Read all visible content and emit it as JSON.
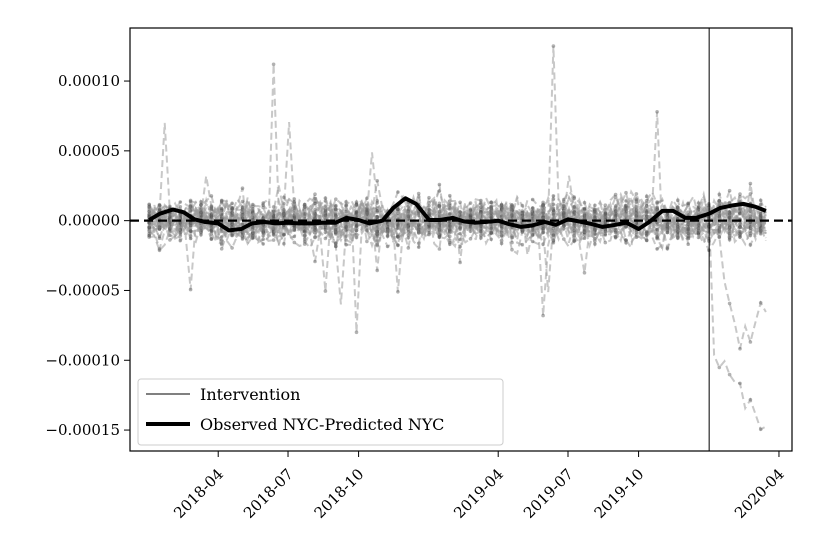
{
  "chart_data": {
    "type": "line",
    "xlabel": "",
    "ylabel": "",
    "xlim": [
      "2017-12-07",
      "2020-04-18"
    ],
    "ylim": [
      -0.000165,
      0.000138
    ],
    "x_ticks": [
      "2018-04",
      "2018-07",
      "2018-10",
      "2019-04",
      "2019-07",
      "2019-10",
      "2020-04"
    ],
    "y_ticks": [
      {
        "value": 0.0001,
        "label": "0.00010"
      },
      {
        "value": 5e-05,
        "label": "0.00005"
      },
      {
        "value": 0.0,
        "label": "0.00000"
      },
      {
        "value": -5e-05,
        "label": "−0.00005"
      },
      {
        "value": -0.0001,
        "label": "−0.00010"
      },
      {
        "value": -0.00015,
        "label": "−0.00015"
      }
    ],
    "reference_line": {
      "y": 0,
      "style": "dashed"
    },
    "intervention": {
      "date": "2020-01-01",
      "label": "Intervention"
    },
    "legend": {
      "position": "lower-left",
      "entries": [
        "Intervention",
        "Observed NYC-Predicted NYC"
      ]
    },
    "observed_series": {
      "name": "Observed NYC-Predicted NYC",
      "x": [
        "2018-01-01",
        "2018-01-15",
        "2018-02-01",
        "2018-02-15",
        "2018-03-01",
        "2018-03-15",
        "2018-04-01",
        "2018-04-15",
        "2018-05-01",
        "2018-05-15",
        "2018-06-01",
        "2018-06-15",
        "2018-07-01",
        "2018-07-15",
        "2018-08-01",
        "2018-08-15",
        "2018-09-01",
        "2018-09-15",
        "2018-10-01",
        "2018-10-15",
        "2018-11-01",
        "2018-11-15",
        "2018-12-01",
        "2018-12-15",
        "2019-01-01",
        "2019-01-15",
        "2019-02-01",
        "2019-02-15",
        "2019-03-01",
        "2019-03-15",
        "2019-04-01",
        "2019-04-15",
        "2019-05-01",
        "2019-05-15",
        "2019-06-01",
        "2019-06-15",
        "2019-07-01",
        "2019-07-15",
        "2019-08-01",
        "2019-08-15",
        "2019-09-01",
        "2019-09-15",
        "2019-10-01",
        "2019-10-15",
        "2019-11-01",
        "2019-11-15",
        "2019-12-01",
        "2019-12-15",
        "2020-01-01",
        "2020-01-15",
        "2020-02-01",
        "2020-02-15",
        "2020-03-01",
        "2020-03-15"
      ],
      "y": [
        5e-07,
        5e-06,
        8e-06,
        6e-06,
        1e-06,
        -1e-06,
        -2e-06,
        -7e-06,
        -6e-06,
        -2e-06,
        -1e-06,
        -2e-06,
        -1.5e-06,
        -2e-06,
        -2e-06,
        -1.5e-06,
        -1.5e-06,
        2e-06,
        5e-07,
        -2e-06,
        0.0,
        9e-06,
        1.6e-05,
        1.2e-05,
        5e-07,
        5e-07,
        2e-06,
        -5e-07,
        -1.5e-06,
        -1e-06,
        0.0,
        -2.5e-06,
        -4.5e-06,
        -3.5e-06,
        -1e-06,
        -3e-06,
        1e-06,
        -5e-07,
        -2.5e-06,
        -4.5e-06,
        -3e-06,
        -1.5e-06,
        -6e-06,
        -1e-06,
        7e-06,
        7e-06,
        2e-06,
        2e-06,
        5e-06,
        9e-06,
        1.1e-05,
        1.2e-05,
        1e-05,
        7e-06
      ]
    }
  }
}
